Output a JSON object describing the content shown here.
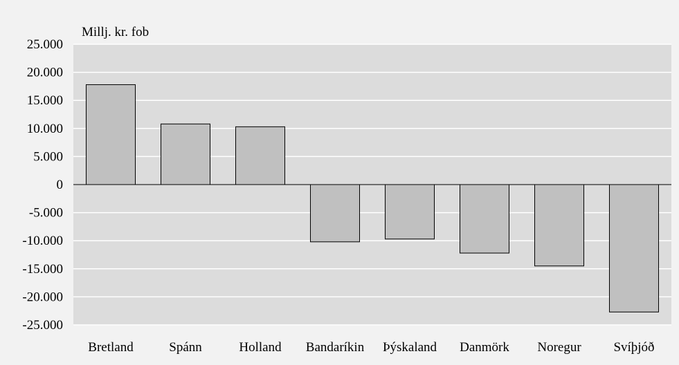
{
  "chart_data": {
    "type": "bar",
    "title": "",
    "unit_label": "Millj. kr. fob",
    "xlabel": "",
    "ylabel": "",
    "categories": [
      "Bretland",
      "Spánn",
      "Holland",
      "Bandaríkin",
      "Þýskaland",
      "Danmörk",
      "Noregur",
      "Svíþjóð"
    ],
    "values": [
      17800,
      10800,
      10300,
      -10200,
      -9700,
      -12200,
      -14500,
      -22700
    ],
    "ylim": [
      -25000,
      25000
    ],
    "ytick_values": [
      25000,
      20000,
      15000,
      10000,
      5000,
      0,
      -5000,
      -10000,
      -15000,
      -20000,
      -25000
    ],
    "ytick_labels": [
      "25.000",
      "20.000",
      "15.000",
      "10.000",
      "5.000",
      "0",
      "-5.000",
      "-10.000",
      "-15.000",
      "-20.000",
      "-25.000"
    ],
    "grid": true,
    "legend": "none",
    "colors": {
      "page_background": "#f2f2f2",
      "plot_background": "#dcdcdc",
      "gridline": "#ffffff",
      "bar_fill": "#c0c0c0",
      "bar_stroke": "#000000",
      "zero_line": "#000000"
    }
  }
}
